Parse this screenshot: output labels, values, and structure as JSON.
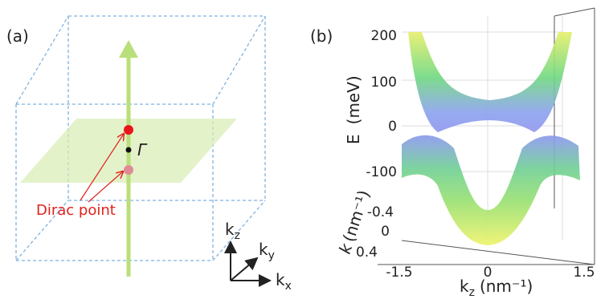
{
  "panel_a": {
    "label": "(a)",
    "gamma": "Γ",
    "dirac_point": "Dirac point",
    "axes": {
      "kz": {
        "main": "k",
        "sub": "z"
      },
      "ky": {
        "main": "k",
        "sub": "y"
      },
      "kx": {
        "main": "k",
        "sub": "x"
      }
    }
  },
  "panel_b": {
    "label": "(b)",
    "energy_axis": {
      "symbol": "E",
      "unit": "(meV)",
      "ticks": [
        "200",
        "100",
        "0",
        "-100"
      ]
    },
    "k_axis": {
      "symbol": "k",
      "unit": "(nm⁻¹)",
      "ticks": [
        "-0.4",
        "0",
        "0.4"
      ]
    },
    "kz_axis": {
      "main": "k",
      "sub": "z",
      "unit": "(nm⁻¹)",
      "ticks": [
        "-1.5",
        "0",
        "1.5"
      ]
    }
  }
}
